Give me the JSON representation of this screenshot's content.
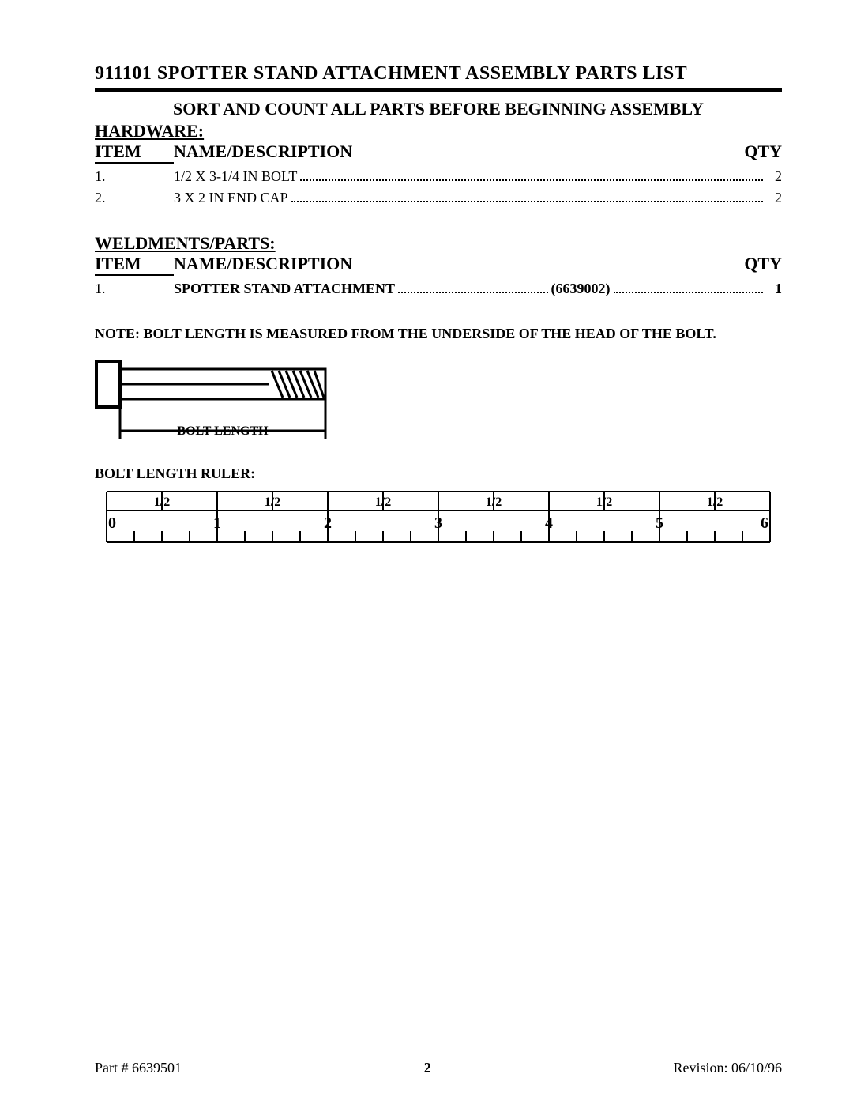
{
  "title": "911101  SPOTTER STAND ATTACHMENT ASSEMBLY PARTS LIST",
  "subtitle": "SORT AND COUNT ALL PARTS BEFORE BEGINNING ASSEMBLY",
  "columns": {
    "item": "ITEM",
    "name": "NAME/DESCRIPTION",
    "qty": "QTY"
  },
  "hardware": {
    "heading": "HARDWARE:",
    "rows": [
      {
        "item": "1.",
        "name": "1/2 X 3-1/4 IN BOLT",
        "qty": "2"
      },
      {
        "item": "2.",
        "name": "3 X 2 IN END CAP",
        "qty": "2"
      }
    ]
  },
  "weldments": {
    "heading": "WELDMENTS/PARTS:",
    "rows": [
      {
        "item": "1.",
        "name": "SPOTTER STAND ATTACHMENT",
        "code": "(6639002)",
        "qty": "1"
      }
    ]
  },
  "note": "NOTE:  BOLT LENGTH IS MEASURED FROM THE UNDERSIDE OF THE HEAD OF THE BOLT.",
  "bolt_figure": {
    "label": "BOLT LENGTH"
  },
  "ruler": {
    "caption": "BOLT LENGTH RULER:",
    "majors": [
      "0",
      "1",
      "2",
      "3",
      "4",
      "5",
      "6"
    ],
    "half_label": "1/2"
  },
  "footer": {
    "part": "Part # 6639501",
    "page": "2",
    "revision": "Revision: 06/10/96"
  },
  "style": {
    "text_color": "#000000",
    "background": "#ffffff",
    "title_fontsize": 24,
    "body_fontsize": 18
  }
}
